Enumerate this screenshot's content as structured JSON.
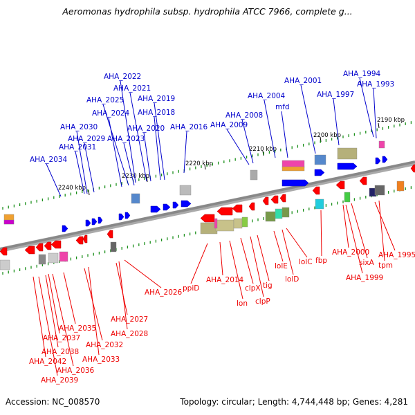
{
  "title": "Aeromonas hydrophila subsp. hydrophila ATCC 7966, complete g...",
  "footer": {
    "accession_label": "Accession:",
    "accession": "NC_008570",
    "topology_label": "Topology:",
    "topology": "circular",
    "length_label": "Length:",
    "length": "4,744,448 bp",
    "genes_label": "Genes:",
    "genes": "4,281"
  },
  "colors": {
    "forward_label": "#0000cc",
    "reverse_label": "#ee0000",
    "forward_gene": "#0000ff",
    "reverse_gene": "#ff0000",
    "backbone": "#888888",
    "tick": "#1a8f1a"
  },
  "ticks": [
    "2190 kbp",
    "2200 kbp",
    "2210 kbp",
    "2220 kbp",
    "2230 kbp",
    "2240 kbp"
  ],
  "forward_labels": [
    "AHA_1994",
    "AHA_1993",
    "AHA_2001",
    "AHA_1997",
    "mfd",
    "AHA_2004",
    "AHA_2008",
    "AHA_2009",
    "AHA_2016",
    "AHA_2022",
    "AHA_2021",
    "AHA_2019",
    "AHA_2025",
    "AHA_2018",
    "AHA_2024",
    "AHA_2020",
    "AHA_2030",
    "AHA_2029",
    "AHA_2023",
    "AHA_2031",
    "AHA_2034"
  ],
  "reverse_labels": [
    "AHA_2026",
    "ppiD",
    "AHA_2014",
    "lon",
    "clpX",
    "clpP",
    "tig",
    "lolE",
    "lolD",
    "lolC",
    "fbp",
    "AHA_2000",
    "sixA",
    "AHA_1999",
    "AHA_1995",
    "tpm",
    "AHA_2027",
    "AHA_2028",
    "AHA_2035",
    "AHA_2037",
    "AHA_2032",
    "AHA_2038",
    "AHA_2033",
    "AHA_2042",
    "AHA_2036",
    "AHA_2039"
  ]
}
